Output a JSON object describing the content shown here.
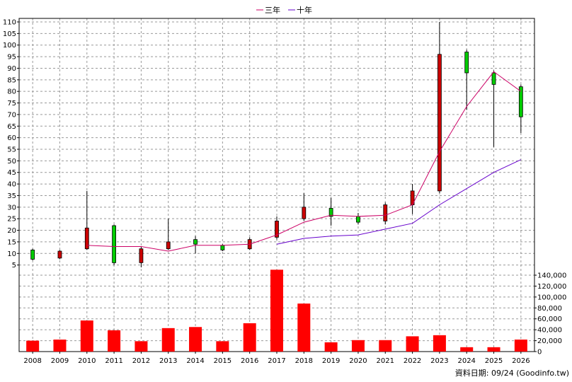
{
  "chart_data": {
    "type": "candlestick",
    "years": [
      "2008",
      "2009",
      "2010",
      "2011",
      "2012",
      "2013",
      "2014",
      "2015",
      "2016",
      "2017",
      "2018",
      "2019",
      "2020",
      "2021",
      "2022",
      "2023",
      "2024",
      "2025",
      "2026"
    ],
    "candles": [
      {
        "open": 7.5,
        "close": 11.5,
        "high": 12,
        "low": 7,
        "color": "green"
      },
      {
        "open": 11,
        "close": 8,
        "high": 11.5,
        "low": 7.5,
        "color": "red"
      },
      {
        "open": 21,
        "close": 12,
        "high": 37,
        "low": 11.5,
        "color": "red"
      },
      {
        "open": 6,
        "close": 22,
        "high": 22.5,
        "low": 5,
        "color": "green"
      },
      {
        "open": 12,
        "close": 6,
        "high": 13,
        "low": 4,
        "color": "red"
      },
      {
        "open": 15,
        "close": 12,
        "high": 25,
        "low": 11.5,
        "color": "red"
      },
      {
        "open": 14,
        "close": 16,
        "high": 17.5,
        "low": 10,
        "color": "green"
      },
      {
        "open": 11.5,
        "close": 13.5,
        "high": 14,
        "low": 11,
        "color": "green"
      },
      {
        "open": 16,
        "close": 12,
        "high": 17,
        "low": 11.5,
        "color": "red"
      },
      {
        "open": 24,
        "close": 17,
        "high": 26,
        "low": 16,
        "color": "red"
      },
      {
        "open": 30,
        "close": 25,
        "high": 36,
        "low": 24,
        "color": "red"
      },
      {
        "open": 26,
        "close": 29.5,
        "high": 34,
        "low": 22,
        "color": "green"
      },
      {
        "open": 23.5,
        "close": 26,
        "high": 27.5,
        "low": 22.5,
        "color": "green"
      },
      {
        "open": 31,
        "close": 24,
        "high": 32,
        "low": 22.5,
        "color": "red"
      },
      {
        "open": 37,
        "close": 31,
        "high": 40,
        "low": 27,
        "color": "red"
      },
      {
        "open": 96,
        "close": 37,
        "high": 110,
        "low": 36,
        "color": "red"
      },
      {
        "open": 88,
        "close": 97,
        "high": 98,
        "low": 72,
        "color": "green"
      },
      {
        "open": 83,
        "close": 88,
        "high": 89,
        "low": 56,
        "color": "green"
      },
      {
        "open": 69,
        "close": 82,
        "high": 83,
        "low": 62,
        "color": "green"
      }
    ],
    "series": [
      {
        "name": "三年",
        "color": "#cc0066",
        "values": [
          null,
          null,
          13.5,
          13,
          13,
          11,
          13.5,
          13.5,
          14,
          18,
          23.5,
          26.5,
          26,
          26.5,
          31,
          54,
          73.5,
          88.5,
          80
        ]
      },
      {
        "name": "十年",
        "color": "#6600cc",
        "values": [
          null,
          null,
          null,
          null,
          null,
          null,
          null,
          null,
          null,
          14,
          16.5,
          17.5,
          18,
          20.5,
          23,
          31,
          38,
          45,
          50.5
        ]
      }
    ],
    "volume": [
      20000,
      22000,
      57000,
      39000,
      19000,
      43000,
      45000,
      19000,
      52000,
      150000,
      88000,
      17000,
      21000,
      21000,
      28000,
      30000,
      8000,
      8000,
      22000
    ],
    "price_ylim": [
      0,
      112
    ],
    "price_ticks": [
      5,
      10,
      15,
      20,
      25,
      30,
      35,
      40,
      45,
      50,
      55,
      60,
      65,
      70,
      75,
      80,
      85,
      90,
      95,
      100,
      105,
      110
    ],
    "volume_ylim": [
      0,
      160000
    ],
    "volume_ticks": [
      0,
      20000,
      40000,
      60000,
      80000,
      100000,
      120000,
      140000
    ],
    "volume_tick_labels": [
      "0",
      "20,000",
      "40,000",
      "60,000",
      "80,000",
      "100,000",
      "120,000",
      "140,000"
    ],
    "grid": true,
    "legend_position": "top-center",
    "colors": {
      "up": "#00cc00",
      "down": "#cc0000",
      "volume": "#ff0000",
      "grid": "#999999"
    }
  },
  "footer": {
    "date_label": "資料日期: 09/24  (Goodinfo.tw)"
  }
}
